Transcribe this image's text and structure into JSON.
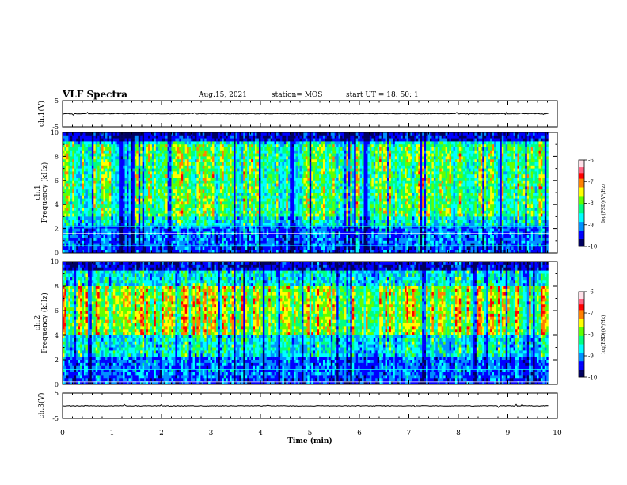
{
  "header": {
    "title": "VLF Spectra",
    "date": "Aug.15, 2021",
    "station": "station= MOS",
    "start": "start  UT  =   18: 50: 1"
  },
  "colors": {
    "scale": [
      "#000080",
      "#0000ff",
      "#00a0ff",
      "#00ffff",
      "#00ff80",
      "#80ff00",
      "#ffff00",
      "#ff8000",
      "#ff0000",
      "#ff4060",
      "#ffc0d0",
      "#ffffff"
    ]
  },
  "chart_data": [
    {
      "type": "line",
      "name": "ch1-waveform",
      "ylabel": "ch.1(V)",
      "ylim": [
        -5,
        5
      ],
      "yticks": [
        "5",
        "-5"
      ],
      "xlim": [
        0,
        10
      ],
      "baseline": 0
    },
    {
      "type": "heatmap",
      "name": "ch1-spectrogram",
      "ylabel": "ch.1\nFrequency (kHz)",
      "ylim": [
        0,
        10
      ],
      "yticks": [
        "0",
        "2",
        "4",
        "6",
        "8",
        "10"
      ],
      "xlim": [
        0,
        10
      ],
      "data_end_min": 9.82,
      "colorbar": {
        "label": "log(PSD)(V²/Hz)",
        "range": [
          -10,
          -6
        ],
        "ticks": [
          "-6",
          "-7",
          "-8",
          "-9",
          "-10"
        ]
      },
      "dominant_band_khz": [
        3,
        9
      ]
    },
    {
      "type": "heatmap",
      "name": "ch2-spectrogram",
      "ylabel": "ch.2\nFrequency (kHz)",
      "ylim": [
        0,
        10
      ],
      "yticks": [
        "0",
        "2",
        "4",
        "6",
        "8",
        "10"
      ],
      "xlim": [
        0,
        10
      ],
      "data_end_min": 9.82,
      "colorbar": {
        "label": "log(PSD)(V²/Hz)",
        "range": [
          -10,
          -6
        ],
        "ticks": [
          "-6",
          "-7",
          "-8",
          "-9",
          "-10"
        ]
      },
      "dominant_band_khz": [
        4,
        8
      ]
    },
    {
      "type": "line",
      "name": "ch3-waveform",
      "ylabel": "ch.3(V)",
      "ylim": [
        -5,
        5
      ],
      "yticks": [
        "5",
        "-5"
      ],
      "xlim": [
        0,
        10
      ],
      "baseline": 0
    }
  ],
  "xaxis": {
    "label": "Time  (min)",
    "ticks": [
      "0",
      "1",
      "2",
      "3",
      "4",
      "5",
      "6",
      "7",
      "8",
      "9",
      "10"
    ]
  }
}
